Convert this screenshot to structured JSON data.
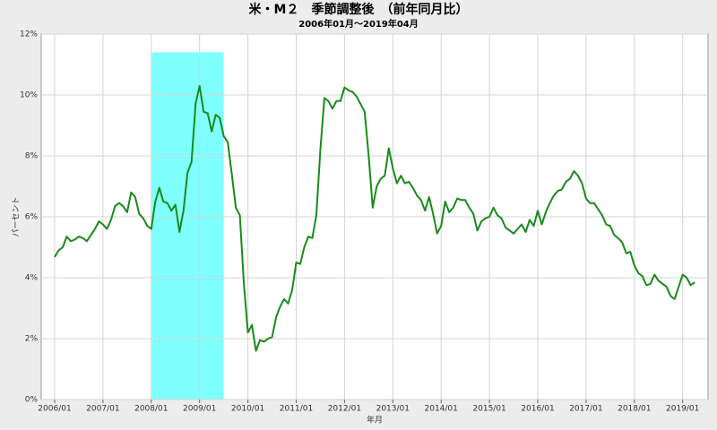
{
  "chart_data": {
    "type": "line",
    "title": "米・M２　季節調整後　（前年同月比）",
    "subtitle": "2006年01月～2019年04月",
    "y_label": "パーセント",
    "x_label": "年月",
    "x": [
      "2006/01",
      "2006/02",
      "2006/03",
      "2006/04",
      "2006/05",
      "2006/06",
      "2006/07",
      "2006/08",
      "2006/09",
      "2006/10",
      "2006/11",
      "2006/12",
      "2007/01",
      "2007/02",
      "2007/03",
      "2007/04",
      "2007/05",
      "2007/06",
      "2007/07",
      "2007/08",
      "2007/09",
      "2007/10",
      "2007/11",
      "2007/12",
      "2008/01",
      "2008/02",
      "2008/03",
      "2008/04",
      "2008/05",
      "2008/06",
      "2008/07",
      "2008/08",
      "2008/09",
      "2008/10",
      "2008/11",
      "2008/12",
      "2009/01",
      "2009/02",
      "2009/03",
      "2009/04",
      "2009/05",
      "2009/06",
      "2009/07",
      "2009/08",
      "2009/09",
      "2009/10",
      "2009/11",
      "2009/12",
      "2010/01",
      "2010/02",
      "2010/03",
      "2010/04",
      "2010/05",
      "2010/06",
      "2010/07",
      "2010/08",
      "2010/09",
      "2010/10",
      "2010/11",
      "2010/12",
      "2011/01",
      "2011/02",
      "2011/03",
      "2011/04",
      "2011/05",
      "2011/06",
      "2011/07",
      "2011/08",
      "2011/09",
      "2011/10",
      "2011/11",
      "2011/12",
      "2012/01",
      "2012/02",
      "2012/03",
      "2012/04",
      "2012/05",
      "2012/06",
      "2012/07",
      "2012/08",
      "2012/09",
      "2012/10",
      "2012/11",
      "2012/12",
      "2013/01",
      "2013/02",
      "2013/03",
      "2013/04",
      "2013/05",
      "2013/06",
      "2013/07",
      "2013/08",
      "2013/09",
      "2013/10",
      "2013/11",
      "2013/12",
      "2014/01",
      "2014/02",
      "2014/03",
      "2014/04",
      "2014/05",
      "2014/06",
      "2014/07",
      "2014/08",
      "2014/09",
      "2014/10",
      "2014/11",
      "2014/12",
      "2015/01",
      "2015/02",
      "2015/03",
      "2015/04",
      "2015/05",
      "2015/06",
      "2015/07",
      "2015/08",
      "2015/09",
      "2015/10",
      "2015/11",
      "2015/12",
      "2016/01",
      "2016/02",
      "2016/03",
      "2016/04",
      "2016/05",
      "2016/06",
      "2016/07",
      "2016/08",
      "2016/09",
      "2016/10",
      "2016/11",
      "2016/12",
      "2017/01",
      "2017/02",
      "2017/03",
      "2017/04",
      "2017/05",
      "2017/06",
      "2017/07",
      "2017/08",
      "2017/09",
      "2017/10",
      "2017/11",
      "2017/12",
      "2018/01",
      "2018/02",
      "2018/03",
      "2018/04",
      "2018/05",
      "2018/06",
      "2018/07",
      "2018/08",
      "2018/09",
      "2018/10",
      "2018/11",
      "2018/12",
      "2019/01",
      "2019/02",
      "2019/03",
      "2019/04"
    ],
    "values": [
      4.68,
      4.9,
      5.0,
      5.35,
      5.2,
      5.25,
      5.35,
      5.3,
      5.2,
      5.4,
      5.6,
      5.85,
      5.75,
      5.6,
      5.9,
      6.35,
      6.45,
      6.35,
      6.15,
      6.8,
      6.65,
      6.1,
      5.95,
      5.7,
      5.6,
      6.5,
      6.95,
      6.5,
      6.45,
      6.2,
      6.4,
      5.5,
      6.2,
      7.45,
      7.8,
      9.7,
      10.3,
      9.45,
      9.4,
      8.8,
      9.35,
      9.25,
      8.65,
      8.45,
      7.4,
      6.3,
      6.05,
      3.8,
      2.2,
      2.45,
      1.6,
      1.95,
      1.9,
      2.0,
      2.05,
      2.7,
      3.05,
      3.3,
      3.15,
      3.6,
      4.5,
      4.45,
      5.0,
      5.35,
      5.3,
      6.05,
      8.2,
      9.9,
      9.8,
      9.55,
      9.8,
      9.8,
      10.25,
      10.15,
      10.1,
      9.95,
      9.7,
      9.45,
      8.0,
      6.3,
      7.0,
      7.25,
      7.35,
      8.25,
      7.6,
      7.1,
      7.35,
      7.1,
      7.15,
      6.95,
      6.7,
      6.55,
      6.2,
      6.65,
      6.1,
      5.45,
      5.7,
      6.5,
      6.15,
      6.3,
      6.6,
      6.55,
      6.55,
      6.3,
      6.1,
      5.55,
      5.85,
      5.95,
      6.0,
      6.3,
      6.05,
      5.95,
      5.65,
      5.55,
      5.45,
      5.6,
      5.75,
      5.5,
      5.9,
      5.7,
      6.2,
      5.75,
      6.15,
      6.45,
      6.7,
      6.85,
      6.9,
      7.15,
      7.25,
      7.5,
      7.35,
      7.1,
      6.6,
      6.45,
      6.45,
      6.25,
      6.05,
      5.75,
      5.7,
      5.4,
      5.3,
      5.15,
      4.8,
      4.85,
      4.4,
      4.15,
      4.05,
      3.75,
      3.8,
      4.1,
      3.9,
      3.8,
      3.7,
      3.4,
      3.3,
      3.7,
      4.1,
      4.0,
      3.75,
      3.85
    ],
    "color": "#1a8a1a",
    "shade": {
      "start": "2008/01",
      "end": "2009/07",
      "top": 11.4,
      "color": "#80ffff"
    },
    "xticks": [
      "2006/01",
      "2007/01",
      "2008/01",
      "2009/01",
      "2010/01",
      "2011/01",
      "2012/01",
      "2013/01",
      "2014/01",
      "2015/01",
      "2016/01",
      "2017/01",
      "2018/01",
      "2019/01"
    ],
    "ylim": [
      0,
      12
    ],
    "yticks": [
      {
        "value": 0,
        "label": "0%"
      },
      {
        "value": 2,
        "label": "2%"
      },
      {
        "value": 4,
        "label": "4%"
      },
      {
        "value": 6,
        "label": "6%"
      },
      {
        "value": 8,
        "label": "8%"
      },
      {
        "value": 10,
        "label": "10%"
      },
      {
        "value": 12,
        "label": "12%"
      }
    ],
    "grid": true
  }
}
